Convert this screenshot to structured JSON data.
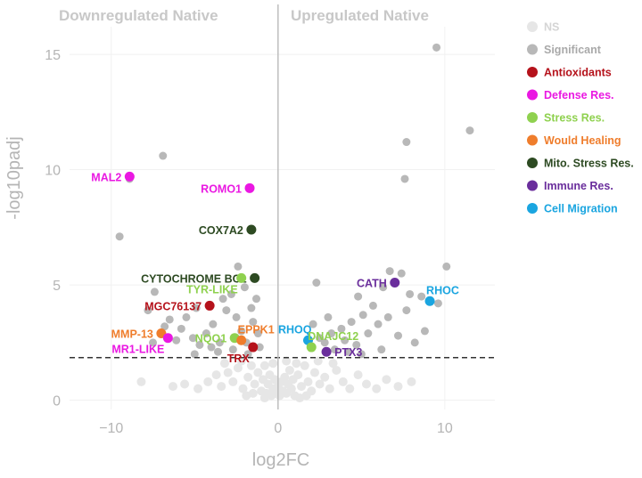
{
  "chart_data": {
    "type": "scatter",
    "title_left": "Downregulated Native",
    "title_right": "Upregulated Native",
    "xlabel": "log2FC",
    "ylabel": "-log10padj",
    "xlim": [
      -12.5,
      13
    ],
    "ylim": [
      -0.4,
      16.2
    ],
    "xticks": [
      -10,
      0,
      10
    ],
    "yticks": [
      0,
      5,
      10,
      15
    ],
    "threshold_y": 1.85,
    "vline_x": 0,
    "colors": {
      "NS": "#e6e6e6",
      "Significant": "#b8b8b8",
      "Antioxidants": "#b5121b",
      "Defense Res.": "#ea18e2",
      "Stress Res.": "#8fd14f",
      "Would Healing": "#ef7d2c",
      "Mito. Stress Res.": "#2d4a22",
      "Immune Res.": "#6a2e9c",
      "Cell Migration": "#1aa5e0"
    },
    "legend": [
      {
        "label": "NS",
        "category": "NS"
      },
      {
        "label": "Significant",
        "category": "Significant"
      },
      {
        "label": "Antioxidants",
        "category": "Antioxidants"
      },
      {
        "label": "Defense Res.",
        "category": "Defense Res."
      },
      {
        "label": "Stress Res.",
        "category": "Stress Res."
      },
      {
        "label": "Would Healing",
        "category": "Would Healing"
      },
      {
        "label": "Mito. Stress Res.",
        "category": "Mito. Stress Res."
      },
      {
        "label": "Immune Res.",
        "category": "Immune Res."
      },
      {
        "label": "Cell Migration",
        "category": "Cell Migration"
      }
    ],
    "highlighted": [
      {
        "label": "MAL2",
        "x": -8.9,
        "y": 9.7,
        "category": "Defense Res.",
        "anchor": "left"
      },
      {
        "label": "ROMO1",
        "x": -1.7,
        "y": 9.2,
        "category": "Defense Res.",
        "anchor": "left"
      },
      {
        "label": "COX7A2",
        "x": -1.6,
        "y": 7.4,
        "category": "Mito. Stress Res.",
        "anchor": "left"
      },
      {
        "label": "CYTOCHROME BC1",
        "x": -1.4,
        "y": 5.3,
        "category": "Mito. Stress Res.",
        "anchor": "left"
      },
      {
        "label": "TYR-LIKE",
        "x": -2.2,
        "y": 5.3,
        "category": "Stress Res.",
        "anchor": "below-left"
      },
      {
        "label": "MGC76137",
        "x": -4.1,
        "y": 4.1,
        "category": "Antioxidants",
        "anchor": "left"
      },
      {
        "label": "MMP-13",
        "x": -7.0,
        "y": 2.9,
        "category": "Would Healing",
        "anchor": "left"
      },
      {
        "label": "MR1-LIKE",
        "x": -6.6,
        "y": 2.7,
        "category": "Defense Res.",
        "anchor": "below-left"
      },
      {
        "label": "NQO1",
        "x": -2.6,
        "y": 2.7,
        "category": "Stress Res.",
        "anchor": "left"
      },
      {
        "label": "EPPK1",
        "x": -2.2,
        "y": 2.6,
        "category": "Would Healing",
        "anchor": "above-right"
      },
      {
        "label": "TRX",
        "x": -1.5,
        "y": 2.3,
        "category": "Antioxidants",
        "anchor": "below-left"
      },
      {
        "label": "RHOQ",
        "x": 1.8,
        "y": 2.6,
        "category": "Cell Migration",
        "anchor": "above-left"
      },
      {
        "label": "DNAJC12",
        "x": 2.0,
        "y": 2.3,
        "category": "Stress Res.",
        "anchor": "above-right"
      },
      {
        "label": "PTX3",
        "x": 2.9,
        "y": 2.1,
        "category": "Immune Res.",
        "anchor": "right"
      },
      {
        "label": "CATH",
        "x": 7.0,
        "y": 5.1,
        "category": "Immune Res.",
        "anchor": "left"
      },
      {
        "label": "RHOC",
        "x": 9.1,
        "y": 4.3,
        "category": "Cell Migration",
        "anchor": "above-right"
      }
    ],
    "significant_points": [
      [
        -9.5,
        7.1
      ],
      [
        -6.9,
        10.6
      ],
      [
        -8.9,
        9.6
      ],
      [
        -7.4,
        4.7
      ],
      [
        -7.8,
        3.9
      ],
      [
        -6.5,
        3.5
      ],
      [
        -5.8,
        3.1
      ],
      [
        -5.1,
        2.7
      ],
      [
        -4.7,
        2.4
      ],
      [
        -4.3,
        2.9
      ],
      [
        -3.9,
        3.3
      ],
      [
        -3.5,
        2.5
      ],
      [
        -3.1,
        3.9
      ],
      [
        -2.8,
        4.6
      ],
      [
        -2.5,
        3.6
      ],
      [
        -2.2,
        3.0
      ],
      [
        -1.9,
        2.5
      ],
      [
        -1.6,
        4.0
      ],
      [
        -1.5,
        3.4
      ],
      [
        -1.3,
        4.4
      ],
      [
        -1.2,
        2.9
      ],
      [
        -2.0,
        4.9
      ],
      [
        -3.3,
        4.4
      ],
      [
        -5.5,
        3.6
      ],
      [
        -6.1,
        2.6
      ],
      [
        -4.0,
        2.3
      ],
      [
        -2.7,
        2.2
      ],
      [
        -1.8,
        2.0
      ],
      [
        -1.1,
        2.3
      ],
      [
        -3.6,
        2.1
      ],
      [
        -5.0,
        2.0
      ],
      [
        -7.5,
        2.5
      ],
      [
        -6.8,
        3.2
      ],
      [
        -4.9,
        4.0
      ],
      [
        -2.4,
        5.8
      ],
      [
        9.5,
        15.3
      ],
      [
        11.5,
        11.7
      ],
      [
        7.7,
        11.2
      ],
      [
        7.6,
        9.6
      ],
      [
        10.1,
        5.8
      ],
      [
        9.6,
        4.2
      ],
      [
        8.6,
        4.5
      ],
      [
        7.9,
        4.6
      ],
      [
        6.7,
        5.6
      ],
      [
        7.4,
        5.5
      ],
      [
        6.3,
        4.9
      ],
      [
        5.7,
        4.1
      ],
      [
        5.1,
        3.7
      ],
      [
        4.4,
        3.4
      ],
      [
        3.8,
        3.1
      ],
      [
        3.2,
        2.9
      ],
      [
        2.8,
        2.5
      ],
      [
        2.3,
        5.1
      ],
      [
        2.5,
        2.7
      ],
      [
        4.0,
        2.6
      ],
      [
        4.7,
        2.4
      ],
      [
        5.4,
        2.9
      ],
      [
        6.0,
        3.3
      ],
      [
        6.6,
        3.6
      ],
      [
        7.2,
        2.8
      ],
      [
        7.7,
        3.9
      ],
      [
        8.2,
        2.5
      ],
      [
        8.8,
        3.0
      ],
      [
        3.4,
        2.2
      ],
      [
        4.2,
        2.1
      ],
      [
        5.0,
        2.0
      ],
      [
        6.2,
        2.2
      ],
      [
        2.1,
        3.3
      ],
      [
        3.0,
        3.6
      ],
      [
        4.8,
        4.5
      ]
    ],
    "ns_points": [
      [
        -8.2,
        0.8
      ],
      [
        -6.3,
        0.6
      ],
      [
        -5.6,
        0.7
      ],
      [
        -4.8,
        0.5
      ],
      [
        -4.2,
        0.8
      ],
      [
        -3.7,
        1.1
      ],
      [
        -3.4,
        0.6
      ],
      [
        -3.0,
        1.2
      ],
      [
        -2.7,
        0.8
      ],
      [
        -2.4,
        1.4
      ],
      [
        -2.1,
        0.5
      ],
      [
        -1.8,
        1.0
      ],
      [
        -1.6,
        1.5
      ],
      [
        -1.4,
        0.7
      ],
      [
        -1.2,
        1.2
      ],
      [
        -1.0,
        0.4
      ],
      [
        -0.9,
        0.9
      ],
      [
        -0.8,
        1.5
      ],
      [
        -0.7,
        0.3
      ],
      [
        -0.6,
        0.7
      ],
      [
        -0.5,
        1.1
      ],
      [
        -0.4,
        0.2
      ],
      [
        -0.3,
        0.5
      ],
      [
        -0.2,
        0.9
      ],
      [
        -0.1,
        0.3
      ],
      [
        0.0,
        0.6
      ],
      [
        0.1,
        0.2
      ],
      [
        0.2,
        0.8
      ],
      [
        0.3,
        0.4
      ],
      [
        0.4,
        1.0
      ],
      [
        0.5,
        0.3
      ],
      [
        0.6,
        0.7
      ],
      [
        0.7,
        1.3
      ],
      [
        0.8,
        0.5
      ],
      [
        0.9,
        0.9
      ],
      [
        1.0,
        0.2
      ],
      [
        1.2,
        1.1
      ],
      [
        1.4,
        0.6
      ],
      [
        1.6,
        1.5
      ],
      [
        1.8,
        0.8
      ],
      [
        2.0,
        0.4
      ],
      [
        2.2,
        1.2
      ],
      [
        2.5,
        0.7
      ],
      [
        2.8,
        1.0
      ],
      [
        3.1,
        0.5
      ],
      [
        3.5,
        1.3
      ],
      [
        3.9,
        0.8
      ],
      [
        4.3,
        0.5
      ],
      [
        4.8,
        1.1
      ],
      [
        5.3,
        0.7
      ],
      [
        5.9,
        0.5
      ],
      [
        6.5,
        0.9
      ],
      [
        7.2,
        0.6
      ],
      [
        8.0,
        0.8
      ],
      [
        -1.5,
        0.3
      ],
      [
        -2.2,
        1.7
      ],
      [
        -0.8,
        0.1
      ],
      [
        1.1,
        1.6
      ],
      [
        1.3,
        0.1
      ],
      [
        0.5,
        1.7
      ],
      [
        -0.3,
        1.6
      ],
      [
        2.4,
        1.7
      ],
      [
        -3.2,
        1.6
      ],
      [
        3.3,
        1.6
      ],
      [
        -1.9,
        0.2
      ],
      [
        1.7,
        0.2
      ]
    ]
  }
}
